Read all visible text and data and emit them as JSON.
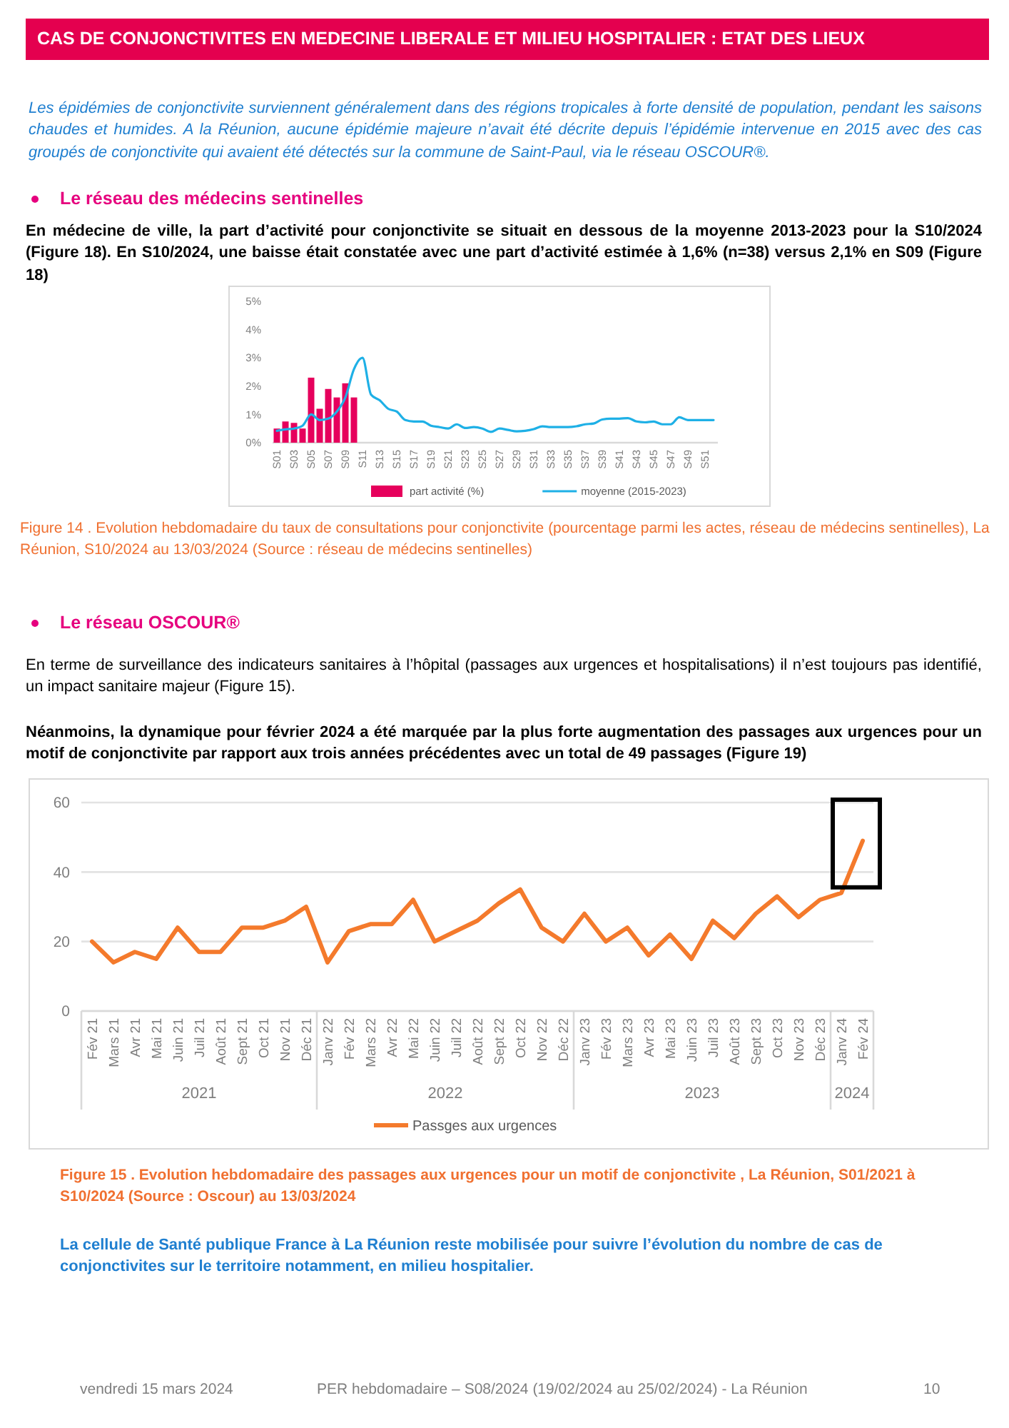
{
  "chart_data": [
    {
      "type": "bar",
      "title": "CAS DE CONJONCTIVITES EN MEDECINE LIBERALE ET MILIEU HOSPITALIER : ETAT DES LIEUX",
      "annotations": [
        "Les épidémies de conjonctivite surviennent généralement dans des régions tropicales à forte densité de population, pendant les saisons chaudes et humides. A la Réunion, aucune épidémie majeure n’avait été décrite depuis l’épidémie intervenue en 2015 avec des cas groupés de conjonctivite qui avaient été détectés sur la commune de Saint-Paul, via le réseau OSCOUR®.",
        "Le réseau des médecins sentinelles",
        "En médecine de ville, la part d’activité pour conjonctivite se situait en dessous de la moyenne 2013-2023 pour la S10/2024 (Figure 18). En S10/2024, une baisse était constatée avec une part d’activité estimée à 1,6% (n=38) versus 2,1% en S09 (Figure 18)",
        "Figure 14 . Evolution hebdomadaire du taux de consultations pour conjonctivite (pourcentage parmi les actes, réseau de médecins sentinelles), La Réunion, S10/2024 au 13/03/2024 (Source : réseau de médecins sentinelles)"
      ],
      "categories": [
        "S01",
        null,
        "S03",
        null,
        "S05",
        null,
        "S07",
        null,
        "S09",
        null,
        "S11",
        null,
        "S13",
        null,
        "S15",
        null,
        "S17",
        null,
        "S19",
        null,
        "S21",
        null,
        "S23",
        null,
        "S25",
        null,
        "S27",
        null,
        "S29",
        null,
        "S31",
        null,
        "S33",
        null,
        "S35",
        null,
        "S37",
        null,
        "S39",
        null,
        "S41",
        null,
        "S43",
        null,
        "S45",
        null,
        "S47",
        null,
        "S49",
        null,
        "S51",
        null
      ],
      "series": [
        {
          "name": "part activité (%)",
          "color": "#e6005c",
          "values": [
            0.5,
            0.75,
            0.7,
            0.5,
            2.3,
            1.2,
            1.9,
            1.6,
            2.1,
            1.6,
            null,
            null,
            null,
            null,
            null,
            null,
            null,
            null,
            null,
            null,
            null,
            null,
            null,
            null,
            null,
            null,
            null,
            null,
            null,
            null,
            null,
            null,
            null,
            null,
            null,
            null,
            null,
            null,
            null,
            null,
            null,
            null,
            null,
            null,
            null,
            null,
            null,
            null,
            null,
            null,
            null,
            null
          ]
        },
        {
          "name": "moyenne (2015-2023)",
          "type": "line",
          "color": "#1eb0e6",
          "values": [
            0.42,
            0.47,
            0.5,
            0.6,
            1.0,
            0.8,
            0.85,
            1.1,
            1.6,
            2.6,
            3.0,
            1.7,
            1.5,
            1.2,
            1.1,
            0.8,
            0.75,
            0.75,
            0.6,
            0.55,
            0.5,
            0.65,
            0.52,
            0.55,
            0.5,
            0.38,
            0.5,
            0.45,
            0.4,
            0.42,
            0.48,
            0.58,
            0.55,
            0.55,
            0.55,
            0.58,
            0.65,
            0.68,
            0.82,
            0.85,
            0.85,
            0.87,
            0.75,
            0.72,
            0.75,
            0.65,
            0.65,
            0.9,
            0.8,
            0.8,
            0.8,
            0.8
          ]
        }
      ],
      "ylim": [
        0,
        5
      ],
      "yticks": [
        {
          "value": 0,
          "label": "0%"
        },
        {
          "value": 1,
          "label": "1%"
        },
        {
          "value": 2,
          "label": "2%"
        },
        {
          "value": 3,
          "label": "3%"
        },
        {
          "value": 4,
          "label": "4%"
        },
        {
          "value": 5,
          "label": "5%"
        }
      ],
      "legend": "bottom"
    },
    {
      "type": "line",
      "annotations": [
        "Le réseau OSCOUR®",
        "En terme de surveillance des indicateurs sanitaires à l’hôpital (passages aux urgences et hospitalisations) il n’est toujours pas identifié, un impact sanitaire majeur (Figure 15).",
        "Néanmoins, la dynamique pour février 2024 a été marquée par la plus forte augmentation des passages aux urgences pour un motif de conjonctivite par rapport aux trois années précédentes avec un total de 49 passages (Figure 19)",
        "Figure 15 . Evolution hebdomadaire des passages aux urgences pour un motif de conjonctivite , La Réunion, S01/2021 à S10/2024 (Source : Oscour) au 13/03/2024",
        "La cellule de Santé publique France à La Réunion reste mobilisée pour suivre l’évolution du nombre de cas de conjonctivites sur le territoire notamment, en milieu hospitalier.",
        "vendredi 15 mars 2024",
        "PER hebdomadaire – S08/2024 (19/02/2024 au 25/02/2024) - La Réunion",
        "10",
        "2021",
        "2022",
        "2023",
        "2024"
      ],
      "categories": [
        "Fév 21",
        "Mars 21",
        "Avr 21",
        "Mai 21",
        "Juin 21",
        "Juil 21",
        "Août 21",
        "Sept 21",
        "Oct 21",
        "Nov 21",
        "Déc 21",
        "Janv 22",
        "Fév 22",
        "Mars 22",
        "Avr 22",
        "Mai 22",
        "Juin 22",
        "Juil 22",
        "Août 22",
        "Sept 22",
        "Oct 22",
        "Nov 22",
        "Déc 22",
        "Janv 23",
        "Fév 23",
        "Mars 23",
        "Avr 23",
        "Mai 23",
        "Juin 23",
        "Juil 23",
        "Août 23",
        "Sept 23",
        "Oct 23",
        "Nov 23",
        "Déc 23",
        "Janv 24",
        "Fév 24"
      ],
      "series": [
        {
          "name": "Passges aux urgences",
          "color": "#f47a2c",
          "values": [
            20,
            14,
            17,
            15,
            24,
            17,
            17,
            24,
            24,
            26,
            30,
            14,
            23,
            25,
            25,
            32,
            20,
            23,
            26,
            31,
            35,
            24,
            20,
            28,
            20,
            24,
            16,
            22,
            15,
            26,
            21,
            28,
            33,
            27,
            32,
            34,
            49
          ]
        }
      ],
      "ylim": [
        0,
        60
      ],
      "yticks": [
        0,
        20,
        40,
        60
      ],
      "grid": "y",
      "legend": "bottom"
    }
  ]
}
